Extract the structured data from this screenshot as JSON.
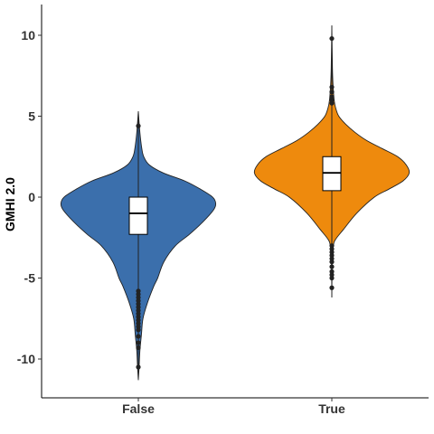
{
  "chart_data": {
    "type": "violin",
    "title": "",
    "xlabel": "",
    "ylabel": "GMHI 2.0",
    "ylim": [
      -12.4,
      11.9
    ],
    "yticks": [
      -10,
      -5,
      0,
      5,
      10
    ],
    "categories": [
      "False",
      "True"
    ],
    "colors": {
      "False": "#3B6FAC",
      "True": "#EE8A0D"
    },
    "grid": false,
    "legend": "none",
    "series": [
      {
        "name": "False",
        "profile": [
          [
            -11.3,
            0.0
          ],
          [
            -10.5,
            0.01
          ],
          [
            -9.5,
            0.02
          ],
          [
            -8.5,
            0.04
          ],
          [
            -7.5,
            0.06
          ],
          [
            -6.5,
            0.12
          ],
          [
            -5.5,
            0.2
          ],
          [
            -5.0,
            0.25
          ],
          [
            -4.0,
            0.33
          ],
          [
            -3.0,
            0.48
          ],
          [
            -2.3,
            0.66
          ],
          [
            -1.5,
            0.84
          ],
          [
            -0.8,
            0.97
          ],
          [
            -0.4,
            1.0
          ],
          [
            0.0,
            0.96
          ],
          [
            0.5,
            0.8
          ],
          [
            1.0,
            0.6
          ],
          [
            1.5,
            0.32
          ],
          [
            2.0,
            0.14
          ],
          [
            2.5,
            0.07
          ],
          [
            3.0,
            0.045
          ],
          [
            4.0,
            0.02
          ],
          [
            5.3,
            0.0
          ]
        ],
        "box": {
          "q1": -2.3,
          "median": -1.0,
          "q3": 0.0
        },
        "whisker": [
          -11.3,
          5.3
        ],
        "outliers": [
          4.4,
          -5.8,
          -6.0,
          -6.2,
          -6.4,
          -6.6,
          -6.8,
          -7.0,
          -7.2,
          -7.4,
          -7.6,
          -7.8,
          -8.0,
          -8.2,
          -8.6,
          -9.0,
          -9.3,
          -10.5
        ]
      },
      {
        "name": "True",
        "profile": [
          [
            -6.2,
            0.0
          ],
          [
            -4.0,
            0.005
          ],
          [
            -3.0,
            0.02
          ],
          [
            -2.6,
            0.05
          ],
          [
            -2.0,
            0.15
          ],
          [
            -1.0,
            0.32
          ],
          [
            0.0,
            0.55
          ],
          [
            0.5,
            0.74
          ],
          [
            1.0,
            0.92
          ],
          [
            1.5,
            1.0
          ],
          [
            2.0,
            0.96
          ],
          [
            2.5,
            0.85
          ],
          [
            3.0,
            0.65
          ],
          [
            3.5,
            0.45
          ],
          [
            4.0,
            0.3
          ],
          [
            4.5,
            0.18
          ],
          [
            5.0,
            0.09
          ],
          [
            5.5,
            0.05
          ],
          [
            6.0,
            0.03
          ],
          [
            7.0,
            0.015
          ],
          [
            8.0,
            0.008
          ],
          [
            10.6,
            0.0
          ]
        ],
        "box": {
          "q1": 0.4,
          "median": 1.5,
          "q3": 2.5
        },
        "whisker": [
          -6.2,
          10.6
        ],
        "outliers": [
          9.8,
          6.8,
          6.5,
          6.2,
          6.0,
          5.8,
          -3.0,
          -3.2,
          -3.4,
          -3.6,
          -3.8,
          -4.0,
          -4.3,
          -4.6,
          -4.8,
          -5.0,
          -5.6
        ]
      }
    ]
  }
}
